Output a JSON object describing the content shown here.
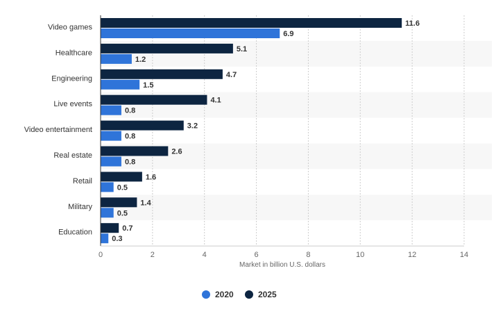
{
  "chart_data": {
    "type": "bar",
    "orientation": "horizontal",
    "categories": [
      "Video games",
      "Healthcare",
      "Engineering",
      "Live events",
      "Video entertainment",
      "Real estate",
      "Retail",
      "Military",
      "Education"
    ],
    "series": [
      {
        "name": "2025",
        "color": "#0d2541",
        "values": [
          11.6,
          5.1,
          4.7,
          4.1,
          3.2,
          2.6,
          1.6,
          1.4,
          0.7
        ]
      },
      {
        "name": "2020",
        "color": "#2f74d9",
        "values": [
          6.9,
          1.2,
          1.5,
          0.8,
          0.8,
          0.8,
          0.5,
          0.5,
          0.3
        ]
      }
    ],
    "xlabel": "Market in billion U.S. dollars",
    "xlim": [
      0,
      14
    ],
    "xticks": [
      0,
      2,
      4,
      6,
      8,
      10,
      12,
      14
    ],
    "grid": "vertical",
    "legend": {
      "placement": "bottom-center",
      "items": [
        {
          "name": "2020",
          "color": "#2f74d9"
        },
        {
          "name": "2025",
          "color": "#0d2541"
        }
      ]
    }
  }
}
